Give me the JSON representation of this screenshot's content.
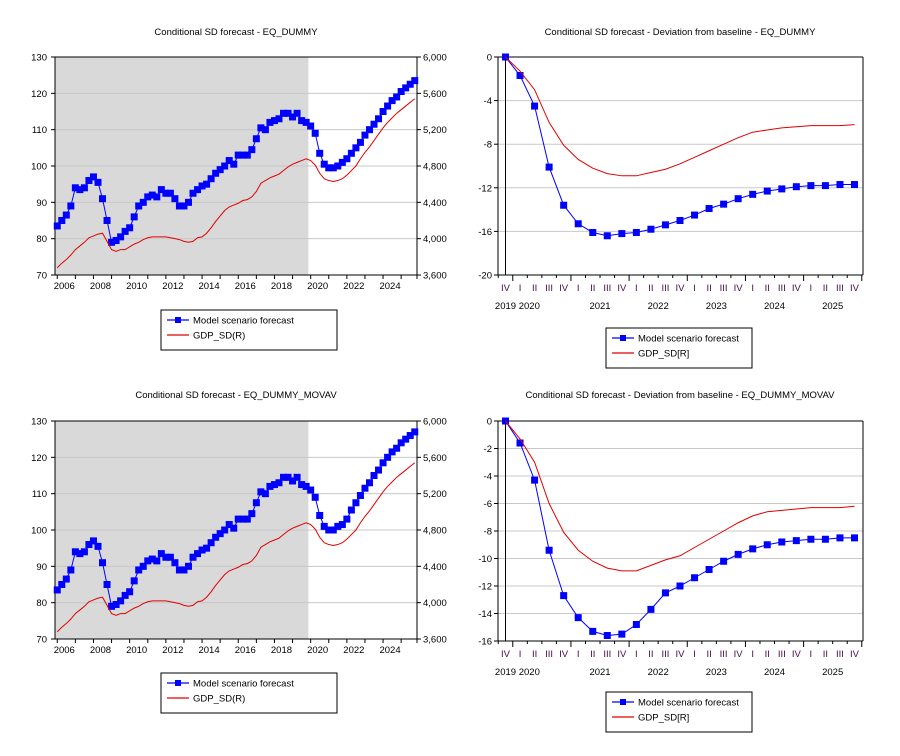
{
  "chart_data": [
    {
      "id": "tl",
      "type": "line",
      "title": "Conditional SD  forecast -  EQ_DUMMY",
      "xlabel": "",
      "ylabel": "",
      "x_start": "2006Q1",
      "frequency": "quarterly",
      "xlim": [
        2005.875,
        2025.875
      ],
      "x_tick_labels": [
        "2006",
        "2008",
        "2010",
        "2012",
        "2014",
        "2016",
        "2018",
        "2020",
        "2022",
        "2024"
      ],
      "x_tick_values": [
        2006,
        2008,
        2010,
        2012,
        2014,
        2016,
        2018,
        2020,
        2022,
        2024
      ],
      "ylim_left": [
        70,
        130
      ],
      "y_ticks_left": [
        70,
        80,
        90,
        100,
        110,
        120,
        130
      ],
      "y_tick_labels_left": [
        "70",
        "80",
        "90",
        "100",
        "110",
        "120",
        "130"
      ],
      "ylim_right": [
        3600,
        6000
      ],
      "y_ticks_right": [
        3600,
        4000,
        4400,
        4800,
        5200,
        5600,
        6000
      ],
      "y_tick_labels_right": [
        "3,600",
        "4,000",
        "4,400",
        "4,800",
        "5,200",
        "5,600",
        "6,000"
      ],
      "shaded_range": [
        2005.875,
        2019.875
      ],
      "shade_color": "#d9d9d9",
      "grid": true,
      "legend_position": "bottom",
      "series": [
        {
          "name": "Model scenario forecast",
          "axis": "left",
          "color": "#0000ff",
          "marker": "square",
          "values": [
            83.5,
            85,
            86.5,
            89,
            94,
            93.5,
            94,
            96,
            97,
            95.5,
            91,
            85,
            79,
            79.5,
            80.5,
            82,
            83,
            86,
            89,
            90,
            91.5,
            92,
            91.5,
            93.5,
            92.5,
            92.5,
            91,
            89,
            89,
            90,
            92.5,
            93.5,
            94.5,
            95,
            96.5,
            98,
            99,
            100,
            101.5,
            100.5,
            103,
            103,
            103,
            104.5,
            107.5,
            110.5,
            110,
            112,
            112.5,
            113,
            114.5,
            114.5,
            113.5,
            114.5,
            112.5,
            112,
            111,
            109,
            103.5,
            100.5,
            99.5,
            99.5,
            100,
            101,
            102,
            103.5,
            105,
            106.5,
            108.5,
            110,
            111.5,
            113,
            115,
            116.5,
            118,
            119,
            120.5,
            121.5,
            122.5,
            123.5
          ]
        },
        {
          "name": "GDP_SD(R)",
          "axis": "right",
          "color": "#e00000",
          "marker": "none",
          "values": [
            3680,
            3730,
            3770,
            3820,
            3880,
            3920,
            3960,
            4010,
            4030,
            4050,
            4060,
            3970,
            3880,
            3860,
            3880,
            3880,
            3910,
            3940,
            3960,
            3990,
            4010,
            4020,
            4020,
            4020,
            4020,
            4010,
            4000,
            3990,
            3970,
            3960,
            3970,
            4010,
            4020,
            4060,
            4120,
            4190,
            4250,
            4310,
            4350,
            4370,
            4390,
            4420,
            4430,
            4460,
            4520,
            4610,
            4640,
            4670,
            4690,
            4710,
            4750,
            4790,
            4820,
            4840,
            4860,
            4880,
            4860,
            4810,
            4720,
            4660,
            4640,
            4630,
            4640,
            4660,
            4700,
            4750,
            4800,
            4880,
            4950,
            5010,
            5080,
            5150,
            5220,
            5280,
            5330,
            5380,
            5420,
            5460,
            5500,
            5540
          ]
        }
      ]
    },
    {
      "id": "tr",
      "type": "line",
      "title": "Conditional SD  forecast - Deviation from baseline -  EQ_DUMMY",
      "xlabel": "",
      "ylabel": "",
      "quarters": [
        "IV",
        "I",
        "II",
        "III",
        "IV",
        "I",
        "II",
        "III",
        "IV",
        "I",
        "II",
        "III",
        "IV",
        "I",
        "II",
        "III",
        "IV",
        "I",
        "II",
        "III",
        "IV",
        "I",
        "II",
        "III",
        "IV"
      ],
      "year_labels": [
        "2019",
        "2020",
        "2021",
        "2022",
        "2023",
        "2024",
        "2025"
      ],
      "ylim": [
        -20,
        0
      ],
      "y_ticks": [
        -20,
        -16,
        -12,
        -8,
        -4,
        0
      ],
      "y_tick_labels": [
        "-20",
        "-16",
        "-12",
        "-8",
        "-4",
        "0"
      ],
      "grid": true,
      "legend_position": "bottom",
      "series": [
        {
          "name": "Model scenario forecast",
          "color": "#0000ff",
          "marker": "square",
          "values": [
            0,
            -1.7,
            -4.5,
            -10.1,
            -13.6,
            -15.3,
            -16.1,
            -16.4,
            -16.2,
            -16.1,
            -15.8,
            -15.4,
            -15.0,
            -14.5,
            -13.9,
            -13.5,
            -13.0,
            -12.6,
            -12.3,
            -12.1,
            -11.9,
            -11.8,
            -11.8,
            -11.7,
            -11.7
          ]
        },
        {
          "name": "GDP_SD[R]",
          "color": "#e00000",
          "marker": "none",
          "values": [
            0,
            -1.3,
            -3.0,
            -6.0,
            -8.1,
            -9.4,
            -10.2,
            -10.7,
            -10.9,
            -10.9,
            -10.6,
            -10.3,
            -9.8,
            -9.2,
            -8.6,
            -8.0,
            -7.4,
            -6.9,
            -6.7,
            -6.5,
            -6.4,
            -6.3,
            -6.3,
            -6.3,
            -6.2
          ]
        }
      ]
    },
    {
      "id": "bl",
      "type": "line",
      "title": "Conditional SD  forecast -  EQ_DUMMY_MOVAV",
      "xlabel": "",
      "ylabel": "",
      "x_start": "2006Q1",
      "frequency": "quarterly",
      "xlim": [
        2005.875,
        2025.875
      ],
      "x_tick_labels": [
        "2006",
        "2008",
        "2010",
        "2012",
        "2014",
        "2016",
        "2018",
        "2020",
        "2022",
        "2024"
      ],
      "x_tick_values": [
        2006,
        2008,
        2010,
        2012,
        2014,
        2016,
        2018,
        2020,
        2022,
        2024
      ],
      "ylim_left": [
        70,
        130
      ],
      "y_ticks_left": [
        70,
        80,
        90,
        100,
        110,
        120,
        130
      ],
      "y_tick_labels_left": [
        "70",
        "80",
        "90",
        "100",
        "110",
        "120",
        "130"
      ],
      "ylim_right": [
        3600,
        6000
      ],
      "y_ticks_right": [
        3600,
        4000,
        4400,
        4800,
        5200,
        5600,
        6000
      ],
      "y_tick_labels_right": [
        "3,600",
        "4,000",
        "4,400",
        "4,800",
        "5,200",
        "5,600",
        "6,000"
      ],
      "shaded_range": [
        2005.875,
        2019.875
      ],
      "shade_color": "#d9d9d9",
      "grid": true,
      "legend_position": "bottom",
      "series": [
        {
          "name": "Model scenario forecast",
          "axis": "left",
          "color": "#0000ff",
          "marker": "square",
          "values": [
            83.5,
            85,
            86.5,
            89,
            94,
            93.5,
            94,
            96,
            97,
            95.5,
            91,
            85,
            79,
            79.5,
            80.5,
            82,
            83,
            86,
            89,
            90,
            91.5,
            92,
            91.5,
            93.5,
            92.5,
            92.5,
            91,
            89,
            89,
            90,
            92.5,
            93.5,
            94.5,
            95,
            96.5,
            98,
            99,
            100,
            101.5,
            100.5,
            103,
            103,
            103,
            104.5,
            107.5,
            110.5,
            110,
            112,
            112.5,
            113,
            114.5,
            114.5,
            113.5,
            114.5,
            112.5,
            112,
            111,
            109,
            104,
            101,
            100,
            100,
            101,
            101.5,
            103,
            105.5,
            107.5,
            109.5,
            111.5,
            113,
            115,
            116.5,
            118.5,
            120,
            121.5,
            122.5,
            124,
            125,
            126,
            127
          ]
        },
        {
          "name": "GDP_SD(R)",
          "axis": "right",
          "color": "#e00000",
          "marker": "none",
          "values": [
            3680,
            3730,
            3770,
            3820,
            3880,
            3920,
            3960,
            4010,
            4030,
            4050,
            4060,
            3970,
            3880,
            3860,
            3880,
            3880,
            3910,
            3940,
            3960,
            3990,
            4010,
            4020,
            4020,
            4020,
            4020,
            4010,
            4000,
            3990,
            3970,
            3960,
            3970,
            4010,
            4020,
            4060,
            4120,
            4190,
            4250,
            4310,
            4350,
            4370,
            4390,
            4420,
            4430,
            4460,
            4520,
            4610,
            4640,
            4670,
            4690,
            4710,
            4750,
            4790,
            4820,
            4840,
            4860,
            4880,
            4860,
            4810,
            4720,
            4660,
            4640,
            4630,
            4640,
            4660,
            4700,
            4750,
            4800,
            4880,
            4950,
            5010,
            5080,
            5150,
            5220,
            5280,
            5330,
            5380,
            5420,
            5460,
            5500,
            5540
          ]
        }
      ]
    },
    {
      "id": "br",
      "type": "line",
      "title": "Conditional SD  forecast - Deviation from baseline -  EQ_DUMMY_MOVAV",
      "xlabel": "",
      "ylabel": "",
      "quarters": [
        "IV",
        "I",
        "II",
        "III",
        "IV",
        "I",
        "II",
        "III",
        "IV",
        "I",
        "II",
        "III",
        "IV",
        "I",
        "II",
        "III",
        "IV",
        "I",
        "II",
        "III",
        "IV",
        "I",
        "II",
        "III",
        "IV"
      ],
      "year_labels": [
        "2019",
        "2020",
        "2021",
        "2022",
        "2023",
        "2024",
        "2025"
      ],
      "ylim": [
        -16,
        0
      ],
      "y_ticks": [
        -16,
        -14,
        -12,
        -10,
        -8,
        -6,
        -4,
        -2,
        0
      ],
      "y_tick_labels": [
        "-16",
        "-14",
        "-12",
        "-10",
        "-8",
        "-6",
        "-4",
        "-2",
        "0"
      ],
      "grid": true,
      "legend_position": "bottom",
      "series": [
        {
          "name": "Model scenario forecast",
          "color": "#0000ff",
          "marker": "square",
          "values": [
            0,
            -1.6,
            -4.3,
            -9.4,
            -12.7,
            -14.3,
            -15.3,
            -15.6,
            -15.5,
            -14.8,
            -13.7,
            -12.5,
            -12.0,
            -11.4,
            -10.8,
            -10.2,
            -9.7,
            -9.3,
            -9.0,
            -8.8,
            -8.7,
            -8.6,
            -8.6,
            -8.5,
            -8.5
          ]
        },
        {
          "name": "GDP_SD[R]",
          "color": "#e00000",
          "marker": "none",
          "values": [
            0,
            -1.3,
            -3.0,
            -6.0,
            -8.1,
            -9.4,
            -10.2,
            -10.7,
            -10.9,
            -10.9,
            -10.5,
            -10.1,
            -9.8,
            -9.2,
            -8.6,
            -8.0,
            -7.4,
            -6.9,
            -6.6,
            -6.5,
            -6.4,
            -6.3,
            -6.3,
            -6.3,
            -6.2
          ]
        }
      ]
    }
  ]
}
